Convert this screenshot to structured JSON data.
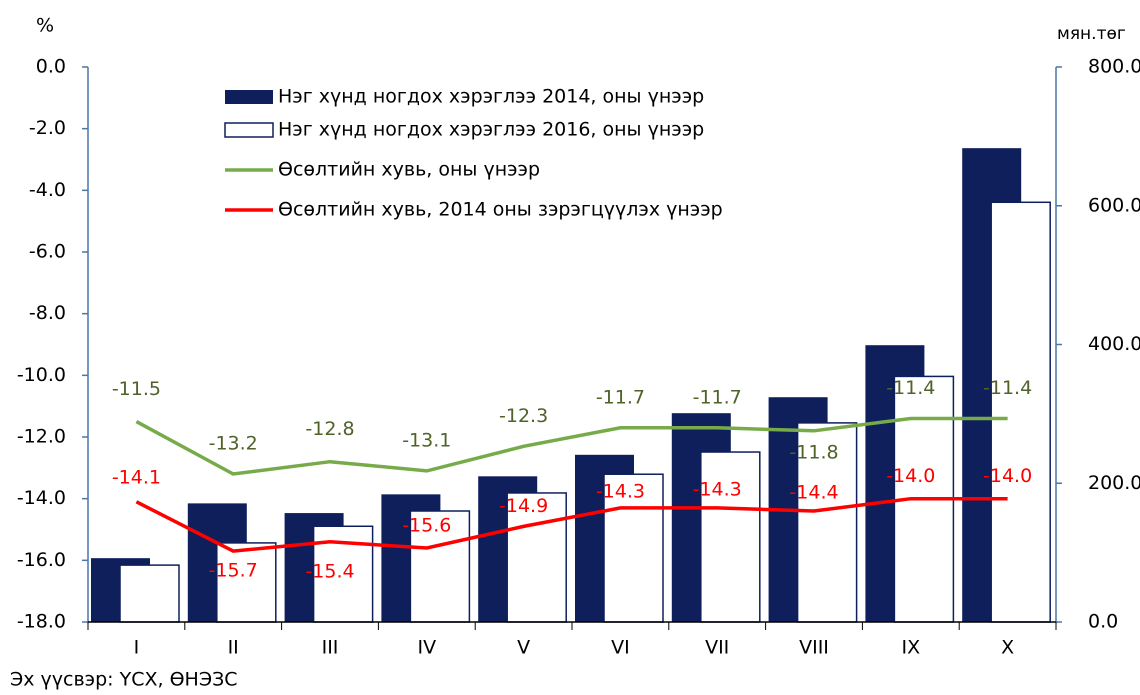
{
  "chart_data": {
    "type": "bar_line",
    "y_label": "%",
    "y2_label": "мян.төг",
    "source": "Эх үүсвэр: ҮСХ, ӨНЭЗС",
    "categories": [
      "I",
      "II",
      "III",
      "IV",
      "V",
      "VI",
      "VII",
      "VIII",
      "IX",
      "X"
    ],
    "ylim": [
      -18,
      0
    ],
    "yticks": [
      {
        "value": -18,
        "label": "-18.0"
      },
      {
        "value": -16,
        "label": "-16.0"
      },
      {
        "value": -14,
        "label": "-14.0"
      },
      {
        "value": -12,
        "label": "-12.0"
      },
      {
        "value": -10,
        "label": "-10.0"
      },
      {
        "value": -8,
        "label": "-8.0"
      },
      {
        "value": -6,
        "label": "-6.0"
      },
      {
        "value": -4,
        "label": "-4.0"
      },
      {
        "value": -2,
        "label": "-2.0"
      },
      {
        "value": 0,
        "label": "0.0"
      }
    ],
    "y2lim": [
      0,
      800
    ],
    "y2ticks": [
      {
        "value": 0,
        "label": "0.0"
      },
      {
        "value": 200,
        "label": "200.0"
      },
      {
        "value": 400,
        "label": "400.0"
      },
      {
        "value": 600,
        "label": "600.0"
      },
      {
        "value": 800,
        "label": "800.0"
      }
    ],
    "legend": "upper left",
    "series": [
      {
        "name": "Нэг хүнд ногдох хэрэглээ 2014, оны үнээр",
        "type": "bar",
        "axis": "y2",
        "color": "#0f1f5c",
        "values": [
          92,
          171,
          157,
          184,
          210,
          241,
          301,
          324,
          399,
          683
        ]
      },
      {
        "name": "Нэг хүнд ногдох хэрэглээ 2016, оны үнээр",
        "type": "bar",
        "axis": "y2",
        "color": "#ffffff",
        "values": [
          82,
          114,
          138,
          160,
          186,
          213,
          245,
          287,
          354,
          605
        ]
      },
      {
        "name": "Өсөлтийн хувь, оны үнээр",
        "type": "line",
        "color": "#77ab4a",
        "values": [
          -11.5,
          -13.2,
          -12.8,
          -13.1,
          -12.3,
          -11.7,
          -11.7,
          -11.8,
          -11.4,
          -11.4
        ],
        "value_labels": [
          "-11.5",
          "-13.2",
          "-12.8",
          "-13.1",
          "-12.3",
          "-11.7",
          "-11.7",
          "-11.8",
          "-11.4",
          "-11.4"
        ]
      },
      {
        "name": "Өсөлтийн хувь, 2014 оны зэрэгцүүлэх үнээр",
        "type": "line",
        "color": "#ff0000",
        "values": [
          -14.1,
          -15.7,
          -15.4,
          -15.6,
          -14.9,
          -14.3,
          -14.3,
          -14.4,
          -14.0,
          -14.0
        ],
        "value_labels": [
          "-14.1",
          "-15.7",
          "-15.4",
          "-15.6",
          "-14.9",
          "-14.3",
          "-14.3",
          "-14.4",
          "-14.0",
          "-14.0"
        ]
      }
    ]
  }
}
